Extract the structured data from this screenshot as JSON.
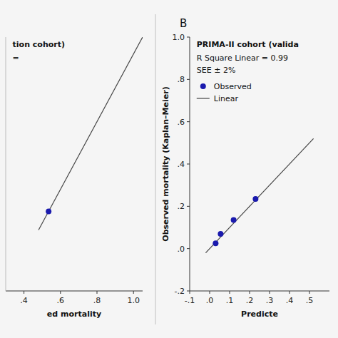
{
  "chart_data": [
    {
      "type": "scatter",
      "title": "tion cohort)",
      "annotations": [
        "="
      ],
      "x_label": "ed mortality",
      "xlim": [
        0.3,
        1.05
      ],
      "ylim": [
        0.3,
        1.05
      ],
      "xticks": [
        {
          "value": 0.4,
          "label": ".4"
        },
        {
          "value": 0.6,
          "label": ".6"
        },
        {
          "value": 0.8,
          "label": ".8"
        },
        {
          "value": 1.0,
          "label": "1.0"
        }
      ],
      "yticks": [],
      "tick_labels": "x",
      "series": [
        {
          "type": "scatter",
          "color": "#1a1aad",
          "x": [
            0.535
          ],
          "values": [
            0.535
          ]
        },
        {
          "type": "line",
          "color": "#444444",
          "x": [
            0.48,
            1.05
          ],
          "values": [
            0.48,
            1.05
          ]
        }
      ]
    },
    {
      "type": "scatter",
      "panel_label": "B",
      "title": "PRIMA-II cohort (valida",
      "annotations": [
        "R Square Linear = 0.99",
        "SEE ± 2%"
      ],
      "x_label": "Predicte",
      "y_label": "Observed mortality (Kaplan–Meier)",
      "xlim": [
        -0.1,
        0.6
      ],
      "ylim": [
        -0.2,
        1.0
      ],
      "xticks": [
        {
          "value": -0.1,
          "label": "-.1"
        },
        {
          "value": 0.0,
          "label": ".0"
        },
        {
          "value": 0.1,
          "label": ".1"
        },
        {
          "value": 0.2,
          "label": ".2"
        },
        {
          "value": 0.3,
          "label": ".3"
        },
        {
          "value": 0.4,
          "label": ".4"
        },
        {
          "value": 0.5,
          "label": ".5"
        }
      ],
      "yticks": [
        {
          "value": -0.2,
          "label": "-.2"
        },
        {
          "value": 0.0,
          "label": ".0"
        },
        {
          "value": 0.2,
          "label": ".2"
        },
        {
          "value": 0.4,
          "label": ".4"
        },
        {
          "value": 0.6,
          "label": ".6"
        },
        {
          "value": 0.8,
          "label": ".8"
        },
        {
          "value": 1.0,
          "label": "1.0"
        }
      ],
      "legend": "upper left",
      "series": [
        {
          "name": "Observed",
          "type": "scatter",
          "color": "#1a1aad",
          "x": [
            0.03,
            0.055,
            0.12,
            0.23
          ],
          "values": [
            0.025,
            0.07,
            0.135,
            0.235
          ]
        },
        {
          "name": "Linear",
          "type": "line",
          "color": "#444444",
          "x": [
            -0.02,
            0.52
          ],
          "values": [
            -0.02,
            0.52
          ]
        }
      ]
    }
  ]
}
